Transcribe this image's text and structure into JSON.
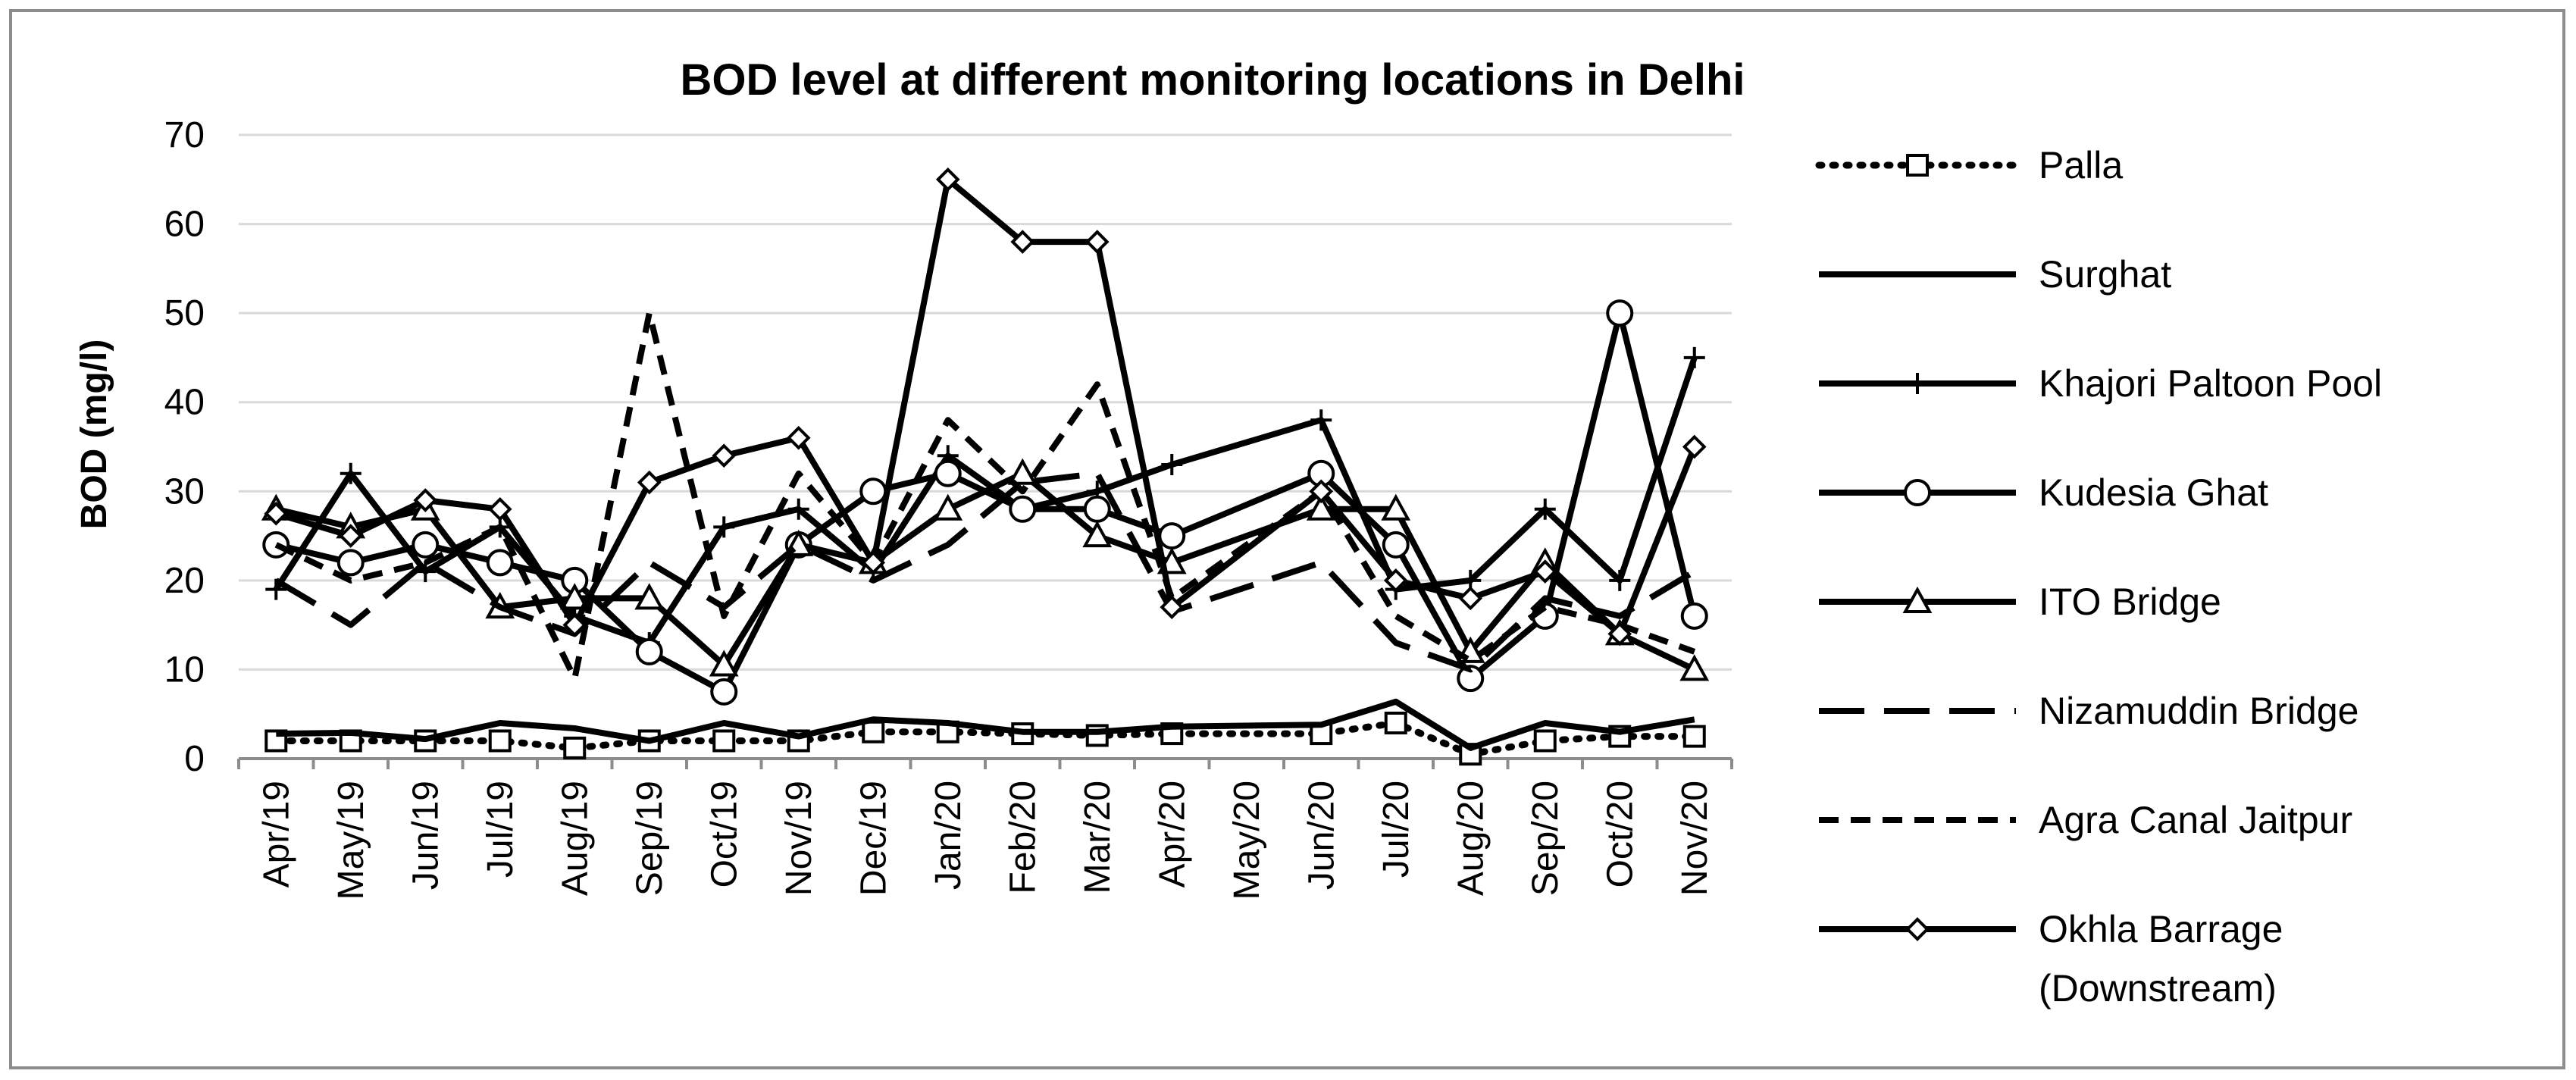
{
  "chart_data": {
    "type": "line",
    "title": "BOD  level at different monitoring locations in Delhi",
    "xlabel": "",
    "ylabel": "BOD (mg/l)",
    "ylim": [
      0,
      70
    ],
    "yticks": [
      0,
      10,
      20,
      30,
      40,
      50,
      60,
      70
    ],
    "grid": "horizontal",
    "legend_position": "right",
    "categories": [
      "Apr/19",
      "May/19",
      "Jun/19",
      "Jul/19",
      "Aug/19",
      "Sep/19",
      "Oct/19",
      "Nov/19",
      "Dec/19",
      "Jan/20",
      "Feb/20",
      "Mar/20",
      "Apr/20",
      "May/20",
      "Jun/20",
      "Jul/20",
      "Aug/20",
      "Sep/20",
      "Oct/20",
      "Nov/20"
    ],
    "series": [
      {
        "name": "Palla",
        "style": "dotted",
        "marker": "square",
        "values": [
          2,
          2,
          2,
          2,
          1.2,
          2,
          2,
          2,
          3,
          3,
          2.8,
          2.6,
          2.8,
          null,
          2.8,
          4,
          0.5,
          2,
          2.5,
          2.5
        ]
      },
      {
        "name": "Surghat",
        "style": "solid",
        "marker": "none",
        "values": [
          2.8,
          2.9,
          2.2,
          4,
          3.4,
          2,
          4,
          2.5,
          4.4,
          4,
          3,
          3,
          3.6,
          null,
          3.8,
          6.4,
          1.2,
          4,
          3,
          4.4
        ]
      },
      {
        "name": "Khajori Paltoon Pool",
        "style": "solid",
        "marker": "plus",
        "values": [
          19,
          32,
          21,
          26,
          16,
          13,
          26,
          28,
          21,
          34,
          28,
          30,
          33,
          null,
          38,
          19,
          20,
          28,
          20,
          45
        ]
      },
      {
        "name": "Kudesia Ghat",
        "style": "solid",
        "marker": "circle",
        "values": [
          24,
          22,
          24,
          22,
          20,
          12,
          7.5,
          24,
          30,
          32,
          28,
          28,
          25,
          null,
          32,
          24,
          9,
          16,
          50,
          16
        ]
      },
      {
        "name": "ITO Bridge",
        "style": "solid",
        "marker": "triangle",
        "values": [
          28,
          26,
          28,
          17,
          18,
          18,
          10.5,
          24,
          22,
          28,
          32,
          25,
          22,
          null,
          28,
          28,
          12,
          22,
          14,
          10
        ]
      },
      {
        "name": "Nizamuddin Bridge",
        "style": "longdash",
        "marker": "none",
        "values": [
          20,
          15,
          22,
          17,
          14,
          22,
          17,
          24,
          20,
          24,
          31,
          32,
          16.5,
          null,
          22,
          13,
          10,
          18,
          16,
          21
        ]
      },
      {
        "name": "Agra Canal Jaitpur",
        "style": "shortdash",
        "marker": "none",
        "values": [
          24,
          20,
          22,
          26,
          9,
          50,
          16,
          32,
          22,
          38,
          30,
          42,
          18,
          null,
          30,
          16,
          11,
          17,
          15,
          12
        ]
      },
      {
        "name": "Okhla Barrage\n(Downstream)",
        "name_lines": [
          "Okhla Barrage",
          "(Downstream)"
        ],
        "style": "solid",
        "marker": "diamond",
        "values": [
          27.5,
          25,
          29,
          28,
          15,
          31,
          34,
          36,
          22,
          65,
          58,
          58,
          17,
          null,
          30,
          20,
          18,
          21,
          14,
          35
        ]
      }
    ]
  }
}
